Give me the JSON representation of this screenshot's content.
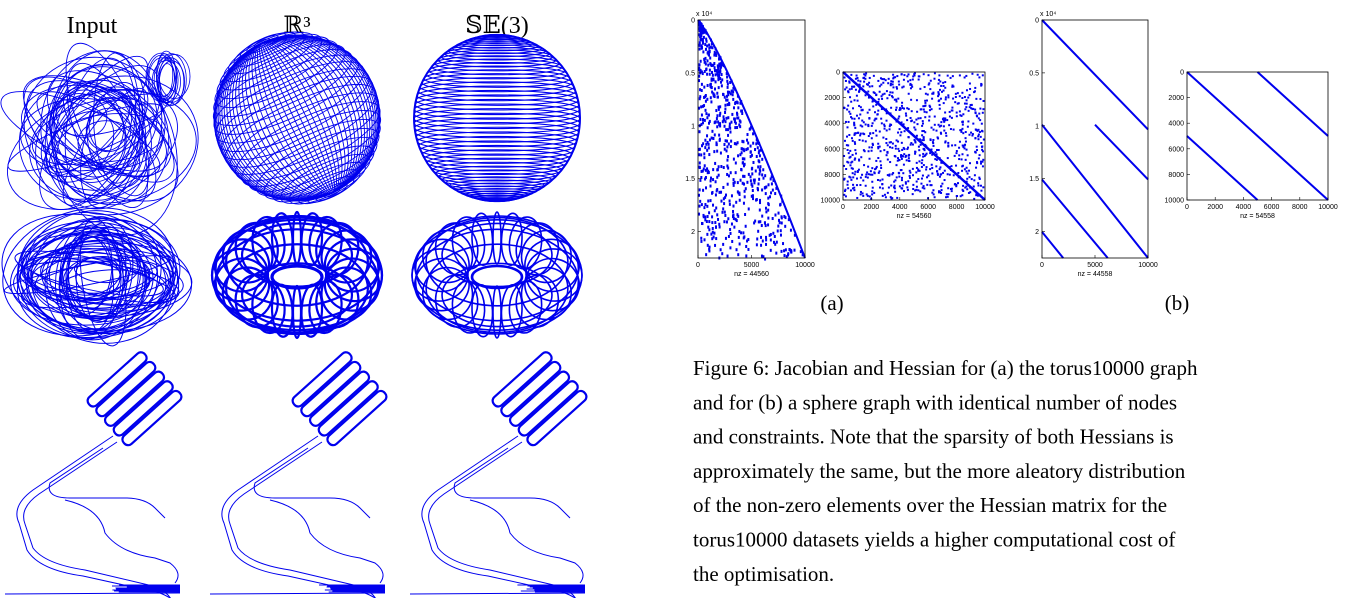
{
  "left_figure": {
    "column_titles": [
      "Input",
      "ℝ³",
      "𝕊𝔼(3)"
    ]
  },
  "right_figure": {
    "panels": [
      {
        "yticks": [
          "0",
          "0.5",
          "1",
          "1.5",
          "2"
        ],
        "exponent": "x 10⁴",
        "xticks": [
          "0",
          "5000",
          "10000"
        ],
        "xlabel": "nz = 44560"
      },
      {
        "yticks": [
          "0",
          "2000",
          "4000",
          "6000",
          "8000",
          "10000"
        ],
        "xticks": [
          "0",
          "2000",
          "4000",
          "6000",
          "8000",
          "10000"
        ],
        "xlabel": "nz = 54560"
      },
      {
        "yticks": [
          "0",
          "0.5",
          "1",
          "1.5",
          "2"
        ],
        "exponent": "x 10⁴",
        "xticks": [
          "0",
          "5000",
          "10000"
        ],
        "xlabel": "nz = 44558"
      },
      {
        "yticks": [
          "0",
          "2000",
          "4000",
          "6000",
          "8000",
          "10000"
        ],
        "xticks": [
          "0",
          "2000",
          "4000",
          "6000",
          "8000",
          "10000"
        ],
        "xlabel": "nz = 54558"
      }
    ],
    "subfigure_labels": [
      "(a)",
      "(b)"
    ],
    "caption_lines": [
      "Figure 6: Jacobian and Hessian for (a) the torus10000 graph",
      "and for (b) a sphere graph with identical number of nodes",
      "and constraints. Note that the sparsity of both Hessians is",
      "approximately the same, but the more aleatory distribution",
      "of the non-zero elements over the Hessian matrix for the",
      "torus10000 datasets yields a higher computational cost of",
      "the optimisation."
    ]
  }
}
